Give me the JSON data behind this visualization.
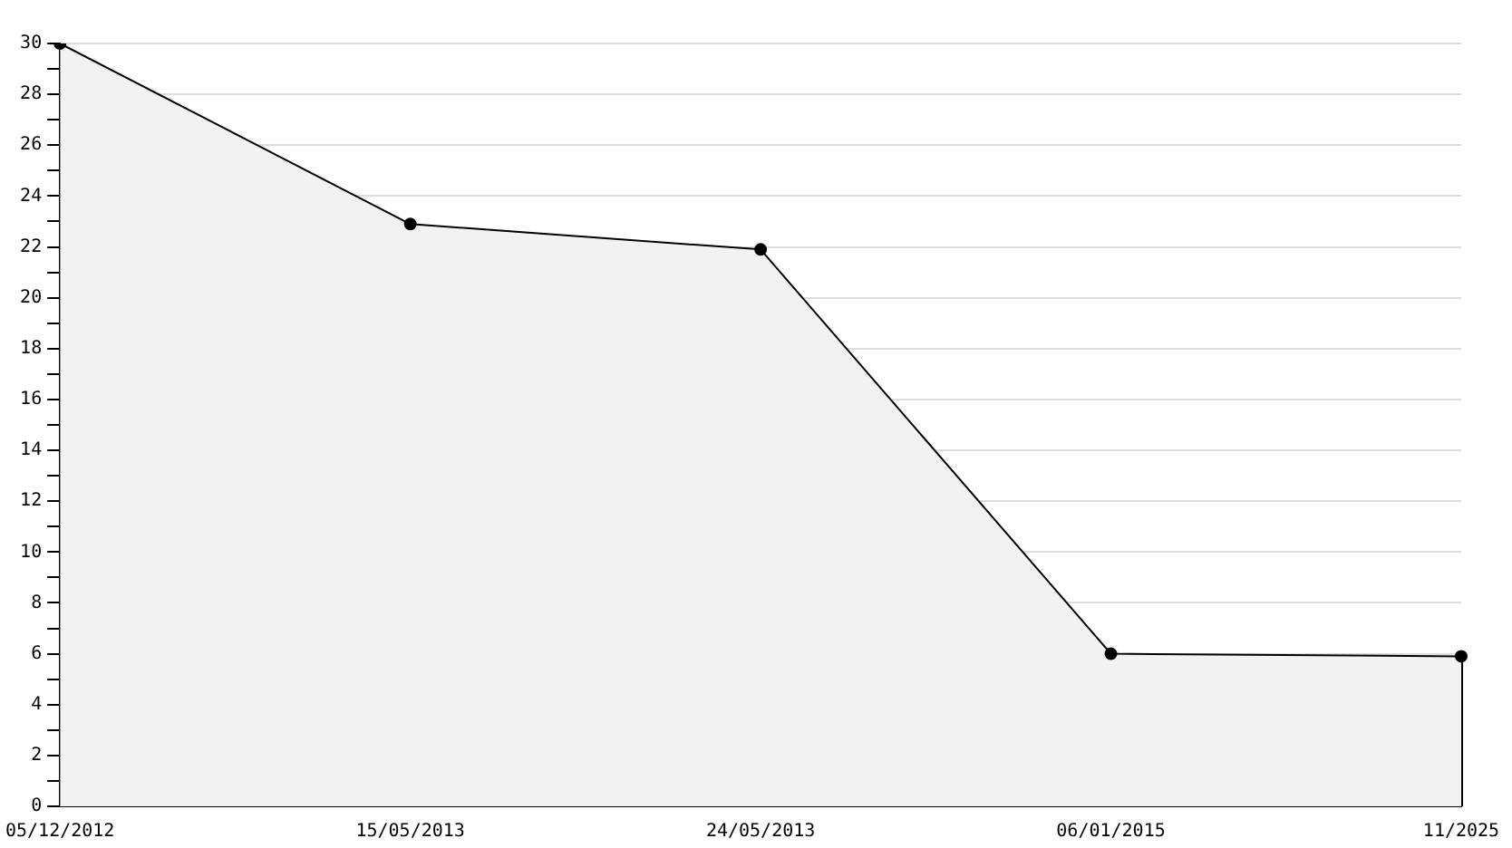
{
  "chart_data": {
    "type": "area",
    "categories": [
      "05/12/2012",
      "15/05/2013",
      "24/05/2013",
      "06/01/2015",
      "11/2025"
    ],
    "series": [
      {
        "color": "#000000",
        "values": [
          30,
          22.9,
          21.9,
          6,
          5.9
        ]
      }
    ],
    "ylim": [
      0,
      30
    ],
    "yticks": [
      0,
      {
        "value": 1,
        "label": null
      },
      2,
      {
        "value": 3,
        "label": null
      },
      4,
      {
        "value": 5,
        "label": null
      },
      6,
      {
        "value": 7,
        "label": null
      },
      8,
      {
        "value": 9,
        "label": null
      },
      10,
      {
        "value": 11,
        "label": null
      },
      12,
      {
        "value": 13,
        "label": null
      },
      14,
      {
        "value": 15,
        "label": null
      },
      16,
      {
        "value": 17,
        "label": null
      },
      18,
      {
        "value": 19,
        "label": null
      },
      20,
      {
        "value": 21,
        "label": null
      },
      22,
      {
        "value": 23,
        "label": null
      },
      24,
      {
        "value": 25,
        "label": null
      },
      26,
      {
        "value": 27,
        "label": null
      },
      28,
      {
        "value": 29,
        "label": null
      },
      30
    ],
    "grid": "y",
    "legend": false,
    "marker": "circle",
    "line_style": "solid"
  }
}
